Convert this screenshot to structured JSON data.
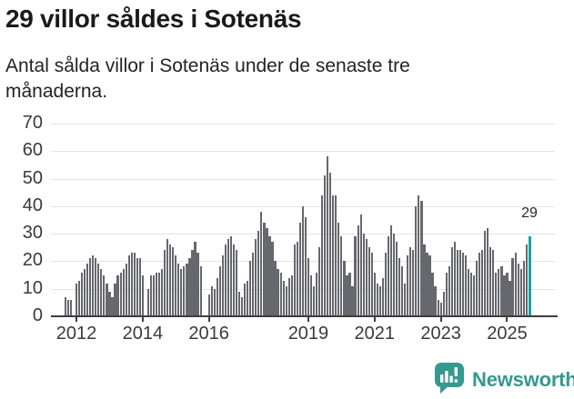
{
  "header": {
    "title": "29 villor såldes i Sotenäs",
    "subtitle": "Antal sålda villor i Sotenäs under de senaste tre månaderna.",
    "subtitle_lines": [
      "Antal sålda villor i Sotenäs under de senaste tre",
      "månaderna."
    ]
  },
  "footer": {
    "brand": "Newsworthy"
  },
  "colors": {
    "bar": "#67676e",
    "highlight": "#18a1a8",
    "brand": "#35998e",
    "grid": "#e3e3e6",
    "axis": "#3f3f3f",
    "title_text": "#1a1a1a",
    "tick_text": "#3a3a3a"
  },
  "chart_data": {
    "type": "bar",
    "title": "29 villor såldes i Sotenäs",
    "subtitle": "Antal sålda villor i Sotenäs under de senaste tre månaderna.",
    "xlabel": "",
    "ylabel": "",
    "frequency": "monthly",
    "x_start": "2011-09",
    "x_end": "2025-09",
    "ylim": [
      0,
      70
    ],
    "grid": true,
    "legend": false,
    "y_ticks": [
      0,
      10,
      20,
      30,
      40,
      50,
      60,
      70
    ],
    "x_tick_years": [
      "2012",
      "2014",
      "2016",
      "2019",
      "2021",
      "2023",
      "2025"
    ],
    "highlight": {
      "index": 168,
      "value": 29,
      "label": "29"
    },
    "values": [
      7,
      6,
      6,
      0,
      12,
      13,
      16,
      17,
      19,
      21,
      22,
      21,
      19,
      17,
      15,
      12,
      9,
      7,
      12,
      15,
      16,
      17,
      19,
      22,
      23,
      23,
      21,
      21,
      15,
      0,
      10,
      15,
      15,
      16,
      16,
      17,
      24,
      28,
      26,
      25,
      22,
      19,
      17,
      18,
      19,
      21,
      24,
      27,
      23,
      18,
      0,
      0,
      8,
      11,
      10,
      14,
      18,
      22,
      26,
      28,
      29,
      26,
      24,
      9,
      7,
      12,
      13,
      20,
      23,
      28,
      31,
      38,
      34,
      32,
      29,
      27,
      20,
      17,
      16,
      13,
      11,
      14,
      15,
      26,
      27,
      34,
      40,
      36,
      21,
      15,
      11,
      16,
      25,
      44,
      51,
      58,
      52,
      44,
      44,
      34,
      29,
      20,
      15,
      16,
      11,
      29,
      33,
      37,
      30,
      28,
      25,
      23,
      16,
      12,
      11,
      14,
      23,
      29,
      33,
      30,
      27,
      21,
      18,
      12,
      22,
      25,
      24,
      40,
      44,
      42,
      26,
      23,
      22,
      16,
      11,
      6,
      5,
      9,
      16,
      18,
      25,
      27,
      24,
      24,
      23,
      22,
      17,
      16,
      15,
      20,
      23,
      24,
      31,
      32,
      25,
      24,
      16,
      17,
      18,
      15,
      16,
      13,
      21,
      23,
      19,
      17,
      20,
      26,
      29
    ]
  }
}
